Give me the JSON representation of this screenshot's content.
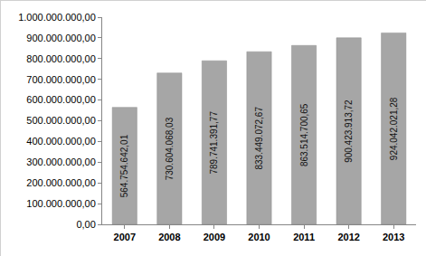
{
  "chart_data": {
    "type": "bar",
    "categories": [
      "2007",
      "2008",
      "2009",
      "2010",
      "2011",
      "2012",
      "2013"
    ],
    "values": [
      564754642.01,
      730604068.03,
      789741391.77,
      833449072.67,
      863514700.65,
      900423913.72,
      924042021.28
    ],
    "value_labels": [
      "564.754.642,01",
      "730.604.068,03",
      "789.741.391,77",
      "833.449.072,67",
      "863.514.700,65",
      "900.423.913,72",
      "924.042.021,28"
    ],
    "color": "#a6a6a6",
    "ylim": [
      0,
      1000000000
    ],
    "yticks": [
      {
        "value": 0,
        "label": "0,00"
      },
      {
        "value": 100000000,
        "label": "100.000.000,00"
      },
      {
        "value": 200000000,
        "label": "200.000.000,00"
      },
      {
        "value": 300000000,
        "label": "300.000.000,00"
      },
      {
        "value": 400000000,
        "label": "400.000.000,00"
      },
      {
        "value": 500000000,
        "label": "500.000.000,00"
      },
      {
        "value": 600000000,
        "label": "600.000.000,00"
      },
      {
        "value": 700000000,
        "label": "700.000.000,00"
      },
      {
        "value": 800000000,
        "label": "800.000.000,00"
      },
      {
        "value": 900000000,
        "label": "900.000.000,00"
      },
      {
        "value": 1000000000,
        "label": "1.000.000.000,00"
      }
    ],
    "grid": false,
    "data_labels": true
  }
}
